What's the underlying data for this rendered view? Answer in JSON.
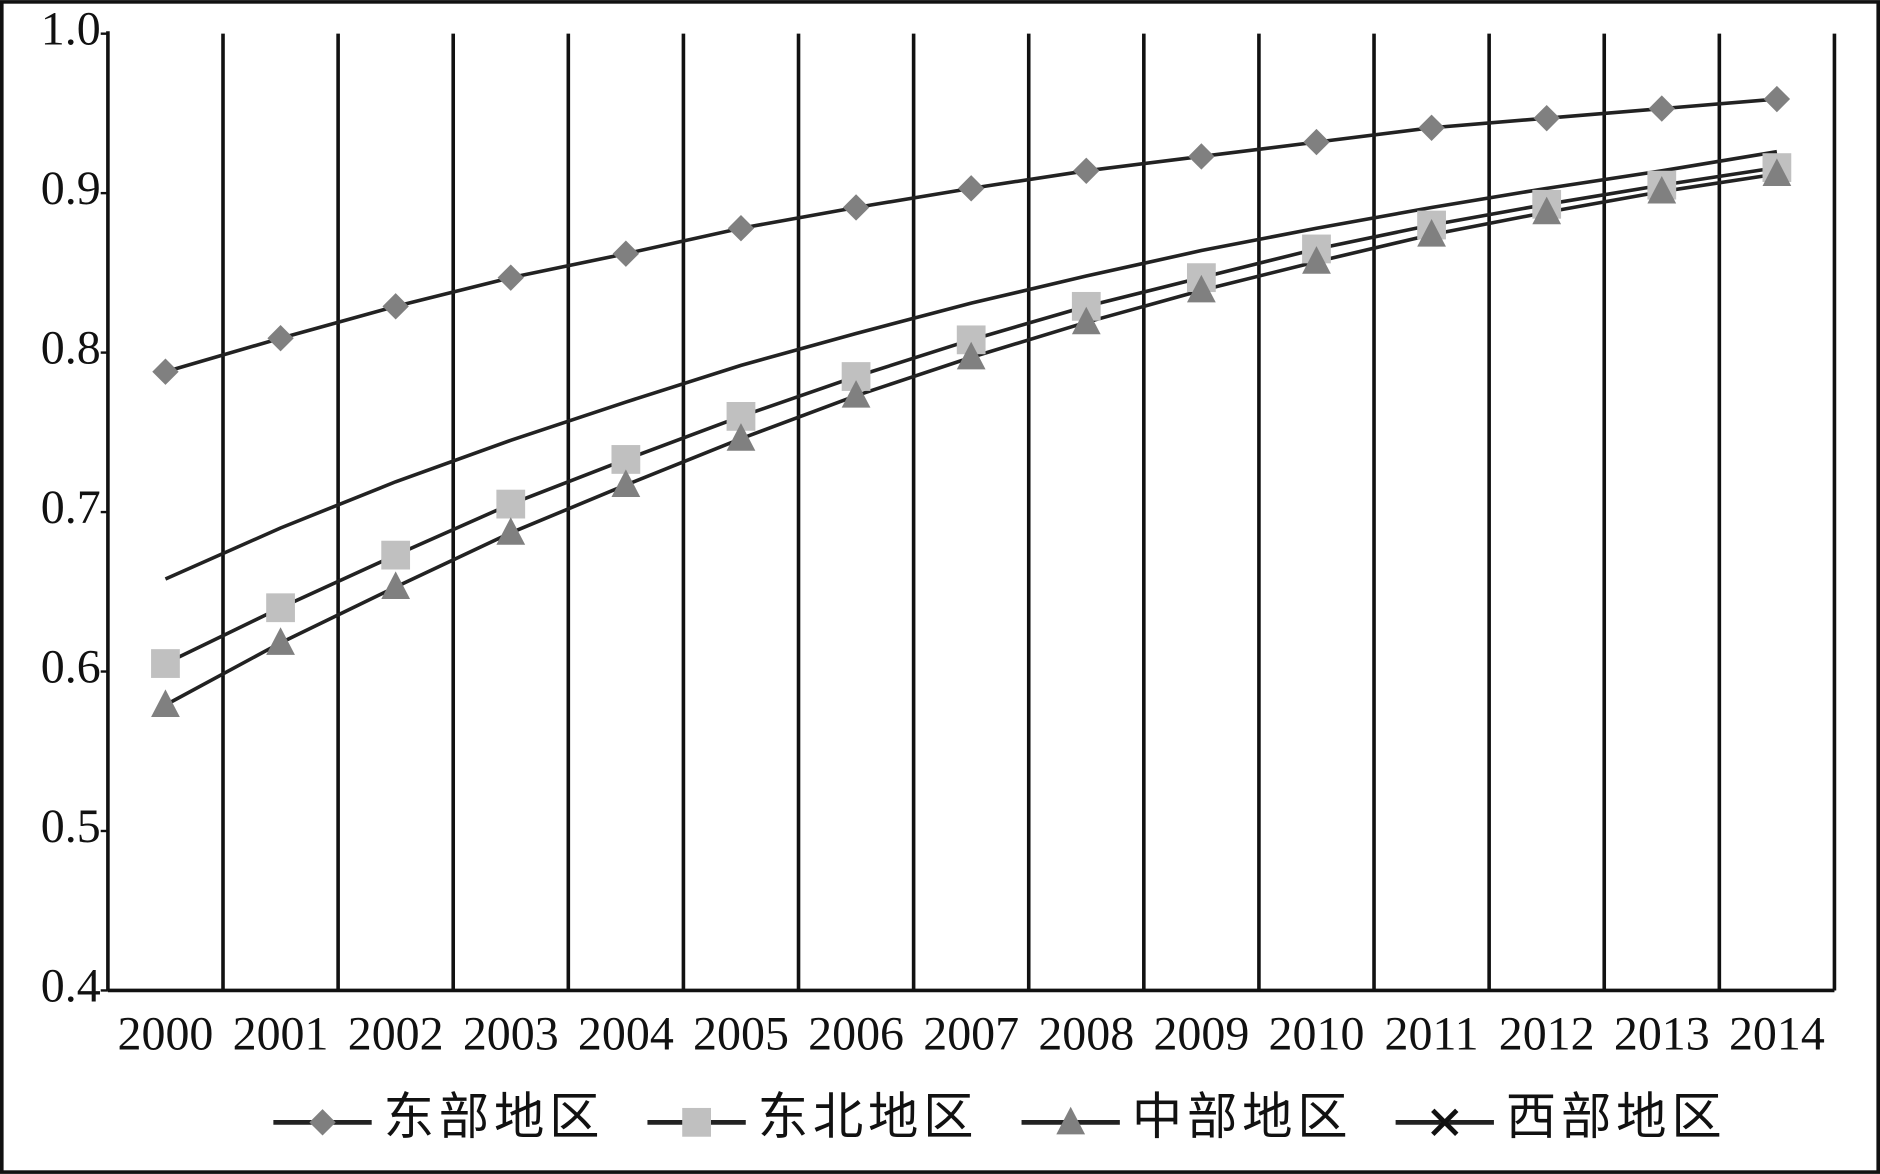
{
  "chart_data": {
    "type": "line",
    "categories": [
      "2000",
      "2001",
      "2002",
      "2003",
      "2004",
      "2005",
      "2006",
      "2007",
      "2008",
      "2009",
      "2010",
      "2011",
      "2012",
      "2013",
      "2014"
    ],
    "series": [
      {
        "name": "东部地区",
        "color": "#808080",
        "marker": "diamond",
        "show_markers": true,
        "values": [
          0.788,
          0.809,
          0.829,
          0.847,
          0.862,
          0.878,
          0.891,
          0.903,
          0.914,
          0.923,
          0.932,
          0.941,
          0.947,
          0.953,
          0.959
        ]
      },
      {
        "name": "东北地区",
        "color": "#c0c0c0",
        "marker": "square",
        "show_markers": true,
        "values": [
          0.605,
          0.64,
          0.673,
          0.705,
          0.733,
          0.76,
          0.785,
          0.808,
          0.829,
          0.847,
          0.865,
          0.88,
          0.893,
          0.905,
          0.916
        ]
      },
      {
        "name": "中部地区",
        "color": "#808080",
        "marker": "triangle",
        "show_markers": true,
        "values": [
          0.579,
          0.618,
          0.653,
          0.687,
          0.717,
          0.746,
          0.773,
          0.797,
          0.819,
          0.839,
          0.857,
          0.874,
          0.888,
          0.901,
          0.912
        ]
      },
      {
        "name": "西部地区",
        "color": "#111111",
        "marker": "x",
        "show_markers": false,
        "values": [
          0.658,
          0.69,
          0.719,
          0.745,
          0.769,
          0.792,
          0.812,
          0.831,
          0.848,
          0.864,
          0.878,
          0.891,
          0.903,
          0.914,
          0.926
        ]
      }
    ],
    "line_color": "#222222",
    "ylim": [
      0.4,
      1.0
    ],
    "yticks": [
      0.4,
      0.5,
      0.6,
      0.7,
      0.8,
      0.9,
      {
        "value": 1.0,
        "label": "1.0"
      }
    ],
    "xgrid": true,
    "legend": "bottom"
  }
}
